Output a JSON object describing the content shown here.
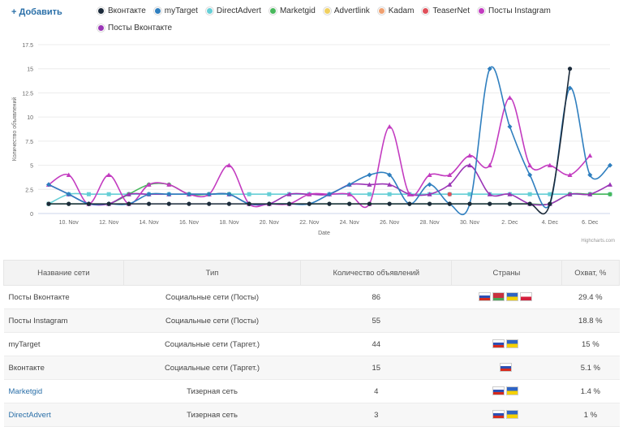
{
  "header": {
    "add_label": "+ Добавить"
  },
  "chart_data": {
    "type": "line",
    "xlabel": "Date",
    "ylabel": "Количество объявлений",
    "ylim": [
      0,
      17.5
    ],
    "yticks": [
      "0",
      "2.5",
      "5",
      "7.5",
      "10",
      "12.5",
      "15",
      "17.5"
    ],
    "x": [
      "9 Nov",
      "10 Nov",
      "11 Nov",
      "12 Nov",
      "13 Nov",
      "14 Nov",
      "15 Nov",
      "16 Nov",
      "17 Nov",
      "18 Nov",
      "19 Nov",
      "20 Nov",
      "21 Nov",
      "22 Nov",
      "23 Nov",
      "24 Nov",
      "25 Nov",
      "26 Nov",
      "27 Nov",
      "28 Nov",
      "29 Nov",
      "30 Nov",
      "1 Dec",
      "2 Dec",
      "3 Dec",
      "4 Dec",
      "5 Dec",
      "6 Dec",
      "7 Dec"
    ],
    "xtick_labels": [
      "10. Nov",
      "12. Nov",
      "14. Nov",
      "16. Nov",
      "18. Nov",
      "20. Nov",
      "22. Nov",
      "24. Nov",
      "26. Nov",
      "28. Nov",
      "30. Nov",
      "2. Dec",
      "4. Dec",
      "6. Dec"
    ],
    "grid": true,
    "series": [
      {
        "name": "Вконтакте",
        "color": "#1b2a3a",
        "values": [
          1,
          1,
          1,
          1,
          1,
          1,
          1,
          1,
          1,
          1,
          1,
          1,
          1,
          1,
          1,
          1,
          1,
          1,
          1,
          1,
          1,
          1,
          1,
          1,
          1,
          1,
          15,
          null,
          null
        ]
      },
      {
        "name": "myTarget",
        "color": "#2f7fbf",
        "values": [
          3,
          2,
          1,
          1,
          1,
          2,
          2,
          2,
          2,
          2,
          1,
          1,
          1,
          1,
          2,
          3,
          4,
          4,
          1,
          3,
          1,
          1,
          15,
          9,
          4,
          1,
          13,
          4,
          5
        ]
      },
      {
        "name": "DirectAdvert",
        "color": "#66cfd6",
        "values": [
          1,
          2,
          2,
          2,
          2,
          2,
          2,
          2,
          2,
          2,
          2,
          2,
          2,
          2,
          2,
          2,
          2,
          2,
          2,
          2,
          2,
          2,
          2,
          2,
          2,
          2,
          2,
          2,
          2
        ]
      },
      {
        "name": "Marketgid",
        "color": "#48b85c",
        "values": [
          1,
          1,
          1,
          1,
          2,
          3,
          3,
          2,
          2,
          2,
          1,
          1,
          1,
          1,
          1,
          1,
          1,
          1,
          1,
          1,
          1,
          1,
          1,
          1,
          1,
          1,
          2,
          2,
          2
        ]
      },
      {
        "name": "Advertlink",
        "color": "#f0d060",
        "values": [
          null,
          null,
          null,
          null,
          null,
          null,
          null,
          null,
          null,
          null,
          null,
          null,
          null,
          null,
          null,
          null,
          null,
          null,
          null,
          null,
          null,
          null,
          null,
          null,
          null,
          null,
          null,
          null,
          null
        ]
      },
      {
        "name": "Kadam",
        "color": "#f0a070",
        "values": [
          null,
          null,
          null,
          null,
          null,
          null,
          null,
          null,
          null,
          null,
          null,
          null,
          null,
          null,
          null,
          null,
          null,
          null,
          null,
          null,
          null,
          null,
          null,
          null,
          null,
          null,
          null,
          null,
          null
        ]
      },
      {
        "name": "TeaserNet",
        "color": "#e0505a",
        "values": [
          null,
          null,
          null,
          null,
          null,
          null,
          null,
          null,
          null,
          null,
          null,
          null,
          null,
          null,
          null,
          null,
          null,
          null,
          null,
          null,
          2,
          null,
          null,
          null,
          null,
          null,
          null,
          null,
          null
        ]
      },
      {
        "name": "Посты Instagram",
        "color": "#c33bc0",
        "values": [
          3,
          4,
          1,
          4,
          1,
          3,
          3,
          2,
          2,
          5,
          1,
          1,
          1,
          2,
          2,
          2,
          1,
          9,
          2,
          4,
          4,
          6,
          5,
          12,
          5,
          5,
          4,
          6,
          null
        ]
      },
      {
        "name": "Посты Вконтакте",
        "color": "#9a35b6",
        "values": [
          3,
          2,
          1,
          1,
          2,
          2,
          2,
          2,
          2,
          2,
          1,
          1,
          2,
          2,
          2,
          3,
          3,
          3,
          2,
          2,
          3,
          5,
          2,
          2,
          1,
          1,
          2,
          2,
          3
        ]
      }
    ]
  },
  "credits": "Highcharts.com",
  "table": {
    "headers": [
      "Название сети",
      "Тип",
      "Количество объявлений",
      "Страны",
      "Охват, %"
    ],
    "rows": [
      {
        "name": "Посты Вконтакте",
        "type": "Социальные сети (Посты)",
        "count": "86",
        "flags": [
          "ru",
          "by2",
          "ua",
          "pl"
        ],
        "reach": "29.4 %",
        "link": false
      },
      {
        "name": "Посты Instagram",
        "type": "Социальные сети (Посты)",
        "count": "55",
        "flags": [],
        "reach": "18.8 %",
        "link": false
      },
      {
        "name": "myTarget",
        "type": "Социальные сети (Таргет.)",
        "count": "44",
        "flags": [
          "ru",
          "ua"
        ],
        "reach": "15 %",
        "link": false
      },
      {
        "name": "Вконтакте",
        "type": "Социальные сети (Таргет.)",
        "count": "15",
        "flags": [
          "ru"
        ],
        "reach": "5.1 %",
        "link": false
      },
      {
        "name": "Marketgid",
        "type": "Тизерная сеть",
        "count": "4",
        "flags": [
          "ru",
          "ua"
        ],
        "reach": "1.4 %",
        "link": true
      },
      {
        "name": "DirectAdvert",
        "type": "Тизерная сеть",
        "count": "3",
        "flags": [
          "ru",
          "ua"
        ],
        "reach": "1 %",
        "link": true
      }
    ]
  }
}
